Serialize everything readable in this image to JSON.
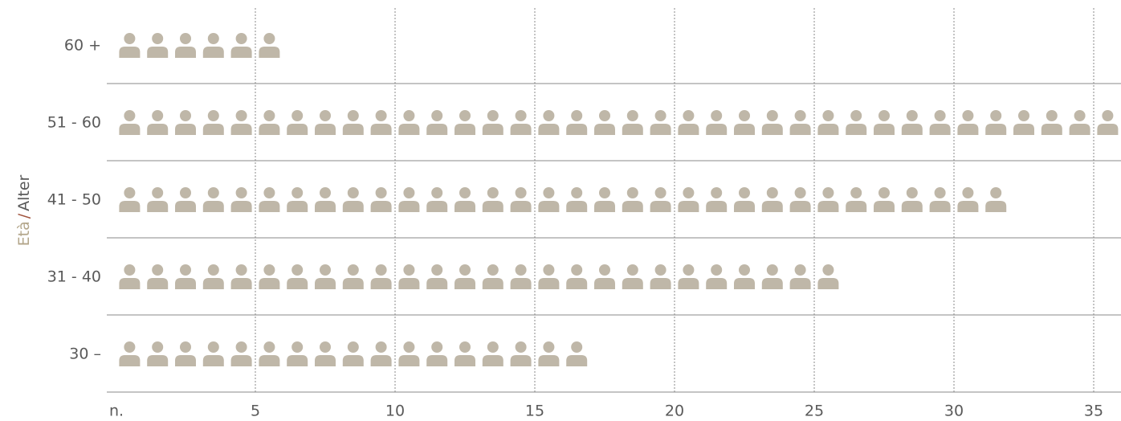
{
  "chart_data": {
    "type": "pictograph",
    "categories": [
      "60 +",
      "51 - 60",
      "41 - 50",
      "31 - 40",
      "30 –"
    ],
    "values": [
      6,
      36,
      32,
      26,
      17
    ],
    "color": "#bfb7a8",
    "ylabel": {
      "it": "Età",
      "sep": "/",
      "de": "Alter"
    },
    "xlabel": "n.",
    "xlim": [
      0,
      36
    ],
    "xticks": [
      5,
      10,
      15,
      20,
      25,
      30,
      35
    ],
    "grid": true
  }
}
